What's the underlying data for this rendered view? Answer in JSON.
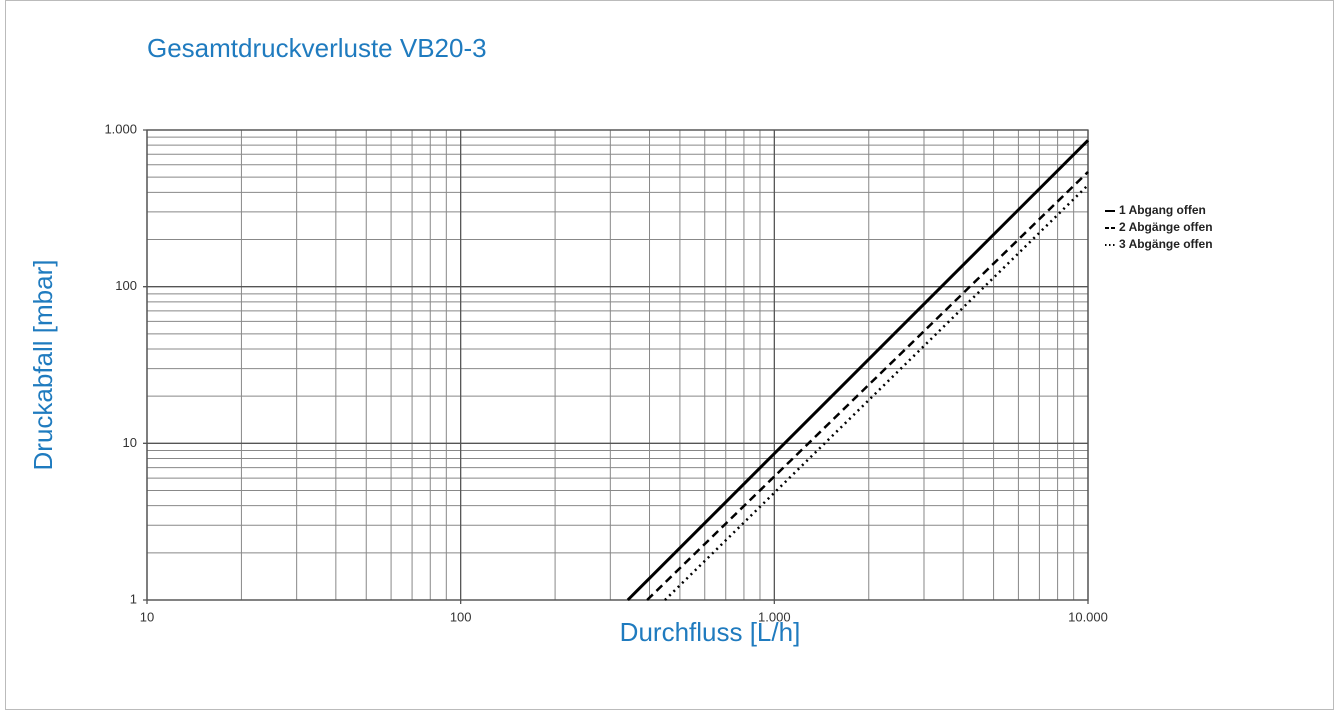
{
  "chart_data": {
    "type": "line",
    "title": "Gesamtdruckverluste VB20-3",
    "xlabel": "Durchfluss [L/h]",
    "ylabel": "Druckabfall [mbar]",
    "xscale": "log",
    "yscale": "log",
    "grid": true,
    "legend": "right",
    "xlim": [
      10,
      10000
    ],
    "ylim": [
      1,
      1000
    ],
    "xticks": [
      10,
      100,
      {
        "value": 1000,
        "label": "1.000"
      },
      {
        "value": 10000,
        "label": "10.000"
      }
    ],
    "yticks": [
      1,
      10,
      100,
      {
        "value": 1000,
        "label": "1.000"
      }
    ],
    "x_minor_ticks": [
      20,
      30,
      40,
      50,
      60,
      70,
      80,
      90,
      200,
      300,
      400,
      500,
      600,
      700,
      800,
      900,
      2000,
      3000,
      4000,
      5000,
      6000,
      7000,
      8000,
      9000
    ],
    "y_minor_ticks": [
      2,
      3,
      4,
      5,
      6,
      7,
      8,
      9,
      20,
      30,
      40,
      50,
      60,
      70,
      80,
      90,
      200,
      300,
      400,
      500,
      600,
      700,
      800,
      900
    ],
    "series": [
      {
        "name": "1 Abgang offen",
        "color": "#000000",
        "linestyle": "solid",
        "x": [
          341,
          10000
        ],
        "values": [
          1,
          860
        ]
      },
      {
        "name": "2 Abgänge offen",
        "color": "#000000",
        "linestyle": "dashed",
        "x": [
          393,
          10000
        ],
        "values": [
          1,
          540
        ]
      },
      {
        "name": "3 Abgänge offen",
        "color": "#000000",
        "linestyle": "dotted",
        "x": [
          448,
          10000
        ],
        "values": [
          1,
          445
        ]
      }
    ]
  }
}
